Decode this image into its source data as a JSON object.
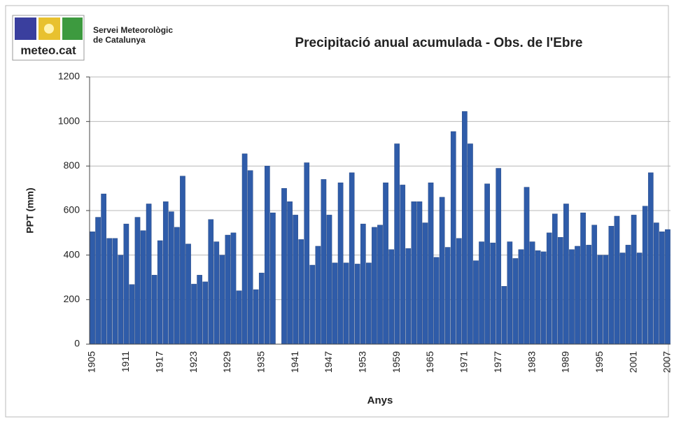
{
  "logo": {
    "text": "meteo.cat",
    "org": [
      "Servei Meteorològic",
      "de Catalunya"
    ]
  },
  "chart_data": {
    "type": "bar",
    "title": "Precipitació anual acumulada - Obs. de l'Ebre",
    "x_label": "Anys",
    "y_label": "PPT (mm)",
    "color": "#2f5ca9",
    "grid": true,
    "ylim": [
      0,
      1200
    ],
    "yticks": [
      0,
      200,
      400,
      600,
      800,
      1000,
      1200
    ],
    "categories": [
      1905,
      null,
      null,
      null,
      null,
      null,
      1911,
      null,
      null,
      null,
      null,
      null,
      1917,
      null,
      null,
      null,
      null,
      null,
      1923,
      null,
      null,
      null,
      null,
      null,
      1929,
      null,
      null,
      null,
      null,
      null,
      1935,
      null,
      null,
      null,
      null,
      null,
      1941,
      null,
      null,
      null,
      null,
      null,
      1947,
      null,
      null,
      null,
      null,
      null,
      1953,
      null,
      null,
      null,
      null,
      null,
      1959,
      null,
      null,
      null,
      null,
      null,
      1965,
      null,
      null,
      null,
      null,
      null,
      1971,
      null,
      null,
      null,
      null,
      null,
      1977,
      null,
      null,
      null,
      null,
      null,
      1983,
      null,
      null,
      null,
      null,
      null,
      1989,
      null,
      null,
      null,
      null,
      null,
      1995,
      null,
      null,
      null,
      null,
      null,
      2001,
      null,
      null,
      null,
      null,
      null,
      2007
    ],
    "values": [
      505,
      570,
      675,
      475,
      475,
      400,
      540,
      268,
      570,
      510,
      630,
      310,
      465,
      640,
      595,
      525,
      755,
      450,
      270,
      310,
      280,
      560,
      460,
      400,
      490,
      500,
      240,
      855,
      780,
      245,
      320,
      800,
      590,
      null,
      700,
      640,
      580,
      470,
      815,
      355,
      440,
      740,
      580,
      365,
      725,
      365,
      770,
      360,
      540,
      365,
      525,
      535,
      725,
      425,
      900,
      715,
      430,
      640,
      640,
      545,
      725,
      390,
      660,
      435,
      955,
      475,
      1045,
      900,
      375,
      460,
      720,
      455,
      790,
      260,
      460,
      385,
      425,
      705,
      460,
      420,
      415,
      500,
      585,
      480,
      630,
      425,
      440,
      590,
      445,
      535,
      400,
      400,
      530,
      575,
      410,
      445,
      580,
      410,
      620,
      770,
      545,
      505,
      515
    ]
  }
}
